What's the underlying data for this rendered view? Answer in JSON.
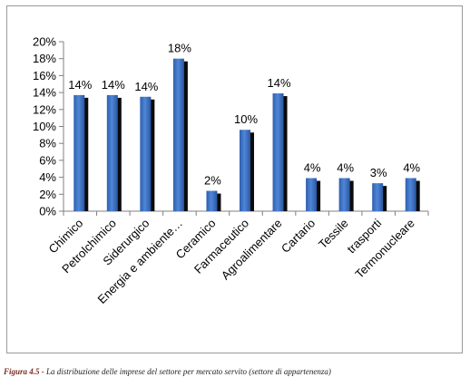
{
  "chart_data": {
    "type": "bar",
    "categories": [
      "Chimico",
      "Petrolchimico",
      "Siderurgico",
      "Energia e ambiente…",
      "Ceramico",
      "Farmaceutico",
      "Agroalimentare",
      "Cartario",
      "Tessile",
      "trasporti",
      "Termonucleare"
    ],
    "values": [
      13.7,
      13.7,
      13.5,
      18.0,
      2.4,
      9.6,
      13.9,
      3.9,
      3.9,
      3.3,
      3.9
    ],
    "data_labels": [
      "14%",
      "14%",
      "14%",
      "18%",
      "2%",
      "10%",
      "14%",
      "4%",
      "4%",
      "3%",
      "4%"
    ],
    "y_ticks": [
      "0%",
      "2%",
      "4%",
      "6%",
      "8%",
      "10%",
      "12%",
      "14%",
      "16%",
      "18%",
      "20%"
    ],
    "ylim": [
      0,
      20
    ],
    "title": "",
    "xlabel": "",
    "ylabel": "",
    "grid": false,
    "legend": "none",
    "colors": {
      "bar": "#3a6fc4",
      "bar_shadow": "#0b0b0b",
      "axis": "#808080"
    }
  },
  "caption": {
    "prefix": "Figura 4.5 -",
    "text": " La distribuzione delle imprese del settore per mercato servito (settore di appartenenza)"
  }
}
